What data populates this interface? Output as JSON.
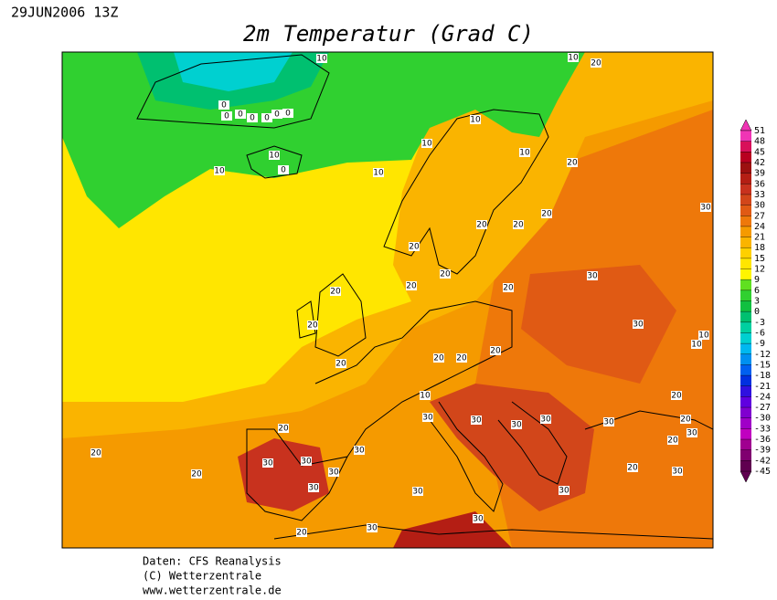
{
  "header": {
    "date": "29JUN2006 13Z",
    "title": "2m Temperatur (Grad C)"
  },
  "map": {
    "contour_labels": [
      10,
      10,
      20,
      0,
      0,
      0,
      0,
      0,
      0,
      0,
      10,
      10,
      10,
      10,
      0,
      10,
      10,
      20,
      20,
      20,
      20,
      30,
      20,
      20,
      20,
      20,
      30,
      20,
      20,
      30,
      10,
      10,
      20,
      20,
      20,
      20,
      10,
      20,
      30,
      30,
      30,
      30,
      30,
      20,
      30,
      20,
      20,
      30,
      20,
      30,
      30,
      30,
      20,
      20,
      30,
      30,
      30,
      30,
      30,
      30,
      20
    ]
  },
  "colorbar": {
    "levels": [
      51,
      48,
      45,
      42,
      39,
      36,
      33,
      30,
      27,
      24,
      21,
      18,
      15,
      12,
      9,
      6,
      3,
      0,
      -3,
      -6,
      -9,
      -12,
      -15,
      -18,
      -21,
      -24,
      -27,
      -30,
      -33,
      -36,
      -39,
      -42,
      -45
    ],
    "colors": [
      "#f035b5",
      "#d8105a",
      "#b80020",
      "#9c1010",
      "#b41e14",
      "#c8321e",
      "#d2461a",
      "#e05a14",
      "#ee780a",
      "#f59a00",
      "#fab400",
      "#ffd000",
      "#ffe600",
      "#fff500",
      "#60e020",
      "#30d030",
      "#10c040",
      "#00c070",
      "#00d0a0",
      "#00d0d0",
      "#00b8f0",
      "#0090f0",
      "#0060f0",
      "#0030e0",
      "#3010e0",
      "#6000e0",
      "#8000d0",
      "#a000c8",
      "#c000c0",
      "#a00090",
      "#800070",
      "#600050"
    ]
  },
  "footer": {
    "lines": [
      "Daten: CFS Reanalysis",
      "(C) Wetterzentrale",
      "www.wetterzentrale.de"
    ]
  }
}
